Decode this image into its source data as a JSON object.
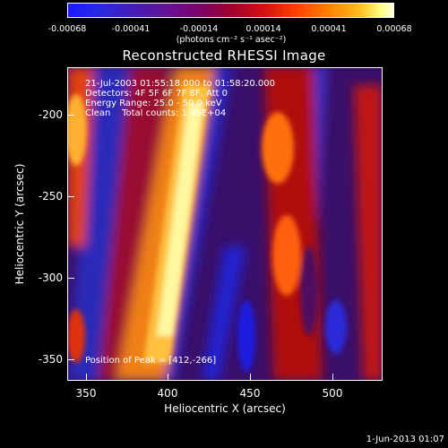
{
  "colorbar": {
    "labels": [
      "-0.00068",
      "-0.00041",
      "-0.00014",
      "0.00014",
      "0.00041",
      "0.00068"
    ],
    "units": "(photons cm⁻² s⁻¹ asec⁻²)"
  },
  "title": "Reconstructed RHESSI Image",
  "info": {
    "time": "21-Jul-2003 01:55:18.000 to 01:58:20.000",
    "detectors": "Detectors: 4F 5F 6F 7F 8F, Att 0",
    "energy": "Energy Range: 25.0 - 50.0 keV",
    "clean": "Clean    Total counts: 1.48E+04",
    "peak": "Position of Peak = [412,-266]"
  },
  "axes": {
    "xlabel": "Heliocentric X (arcsec)",
    "ylabel": "Heliocentric Y (arcsec)",
    "xticks": [
      "350",
      "400",
      "450",
      "500"
    ],
    "yticks": [
      "-200",
      "-250",
      "-300",
      "-350"
    ]
  },
  "footer": {
    "date": "1-Jun-2013 01:07"
  }
}
